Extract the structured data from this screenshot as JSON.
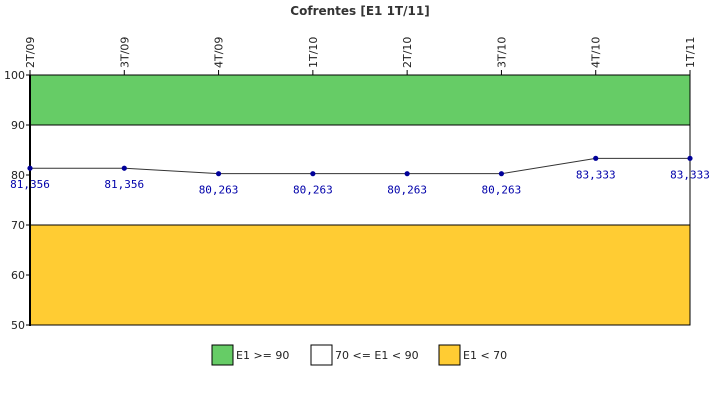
{
  "chart_data": {
    "type": "line",
    "title": "Cofrentes [E1 1T/11]",
    "categories": [
      "2T/09",
      "3T/09",
      "4T/09",
      "1T/10",
      "2T/10",
      "3T/10",
      "4T/10",
      "1T/11"
    ],
    "values": [
      81.356,
      81.356,
      80.263,
      80.263,
      80.263,
      80.263,
      83.333,
      83.333
    ],
    "value_labels": [
      "81,356",
      "81,356",
      "80,263",
      "80,263",
      "80,263",
      "80,263",
      "83,333",
      "83,333"
    ],
    "ylim": [
      50,
      100
    ],
    "yticks": [
      "50",
      "60",
      "70",
      "80",
      "90",
      "100"
    ],
    "grid": false,
    "legend_position": "bottom",
    "bands": [
      {
        "label": "E1 >= 90",
        "from": 90,
        "to": 100,
        "color": "#66cc66"
      },
      {
        "label": "70 <= E1 < 90",
        "from": 70,
        "to": 90,
        "color": "#ffffff"
      },
      {
        "label": "E1 < 70",
        "from": 50,
        "to": 70,
        "color": "#ffcc33"
      }
    ],
    "line_color": "#333333",
    "marker_color": "#000099",
    "label_color": "#0000aa"
  }
}
